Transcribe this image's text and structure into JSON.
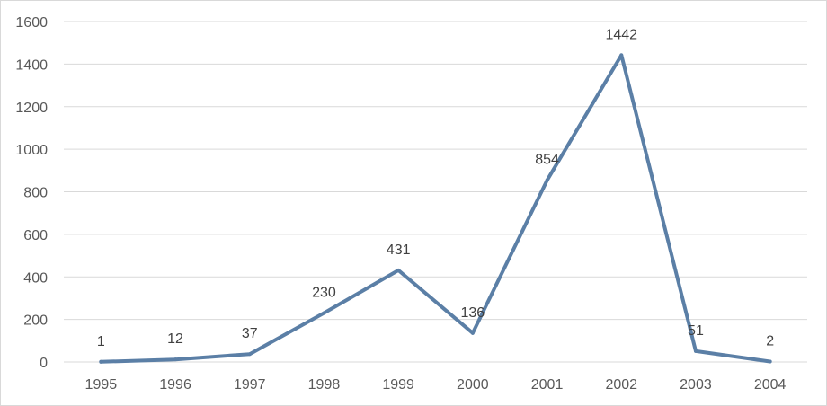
{
  "chart_data": {
    "type": "line",
    "title": "",
    "xlabel": "",
    "ylabel": "",
    "categories": [
      "1995",
      "1996",
      "1997",
      "1998",
      "1999",
      "2000",
      "2001",
      "2002",
      "2003",
      "2004"
    ],
    "series": [
      {
        "values": [
          1,
          12,
          37,
          230,
          431,
          136,
          854,
          1442,
          51,
          2
        ],
        "color": "#5b7fa6"
      }
    ],
    "data_labels": [
      "1",
      "12",
      "37",
      "230",
      "431",
      "136",
      "854",
      "1442",
      "51",
      "2"
    ],
    "ylim": [
      0,
      1600
    ],
    "yticks": [
      0,
      200,
      400,
      600,
      800,
      1000,
      1200,
      1400,
      1600
    ],
    "grid": true,
    "legend": "none"
  }
}
